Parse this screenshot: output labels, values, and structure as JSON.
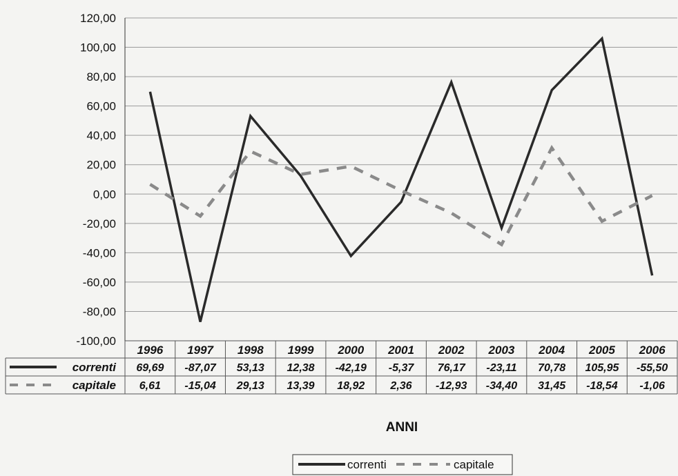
{
  "chart_data": {
    "type": "line",
    "x": [
      "1996",
      "1997",
      "1998",
      "1999",
      "2000",
      "2001",
      "2002",
      "2003",
      "2004",
      "2005",
      "2006"
    ],
    "series": [
      {
        "name": "correnti",
        "values": [
          69.69,
          -87.07,
          53.13,
          12.38,
          -42.19,
          -5.37,
          76.17,
          -23.11,
          70.78,
          105.95,
          -55.5
        ],
        "labels": [
          "69,69",
          "-87,07",
          "53,13",
          "12,38",
          "-42,19",
          "-5,37",
          "76,17",
          "-23,11",
          "70,78",
          "105,95",
          "-55,50"
        ],
        "color": "#2a2a2a",
        "style": "solid"
      },
      {
        "name": "capitale",
        "values": [
          6.61,
          -15.04,
          29.13,
          13.39,
          18.92,
          2.36,
          -12.93,
          -34.4,
          31.45,
          -18.54,
          -1.06
        ],
        "labels": [
          "6,61",
          "-15,04",
          "29,13",
          "13,39",
          "18,92",
          "2,36",
          "-12,93",
          "-34,40",
          "31,45",
          "-18,54",
          "-1,06"
        ],
        "color": "#8a8a8a",
        "style": "dashed"
      }
    ],
    "ylim": [
      -100,
      120
    ],
    "yticks": [
      "120,00",
      "100,00",
      "80,00",
      "60,00",
      "40,00",
      "20,00",
      "0,00",
      "-20,00",
      "-40,00",
      "-60,00",
      "-80,00",
      "-100,00"
    ],
    "xlabel": "ANNI",
    "ylabel": "",
    "title": "",
    "grid": true,
    "legend": "bottom-center",
    "data_table": true
  }
}
